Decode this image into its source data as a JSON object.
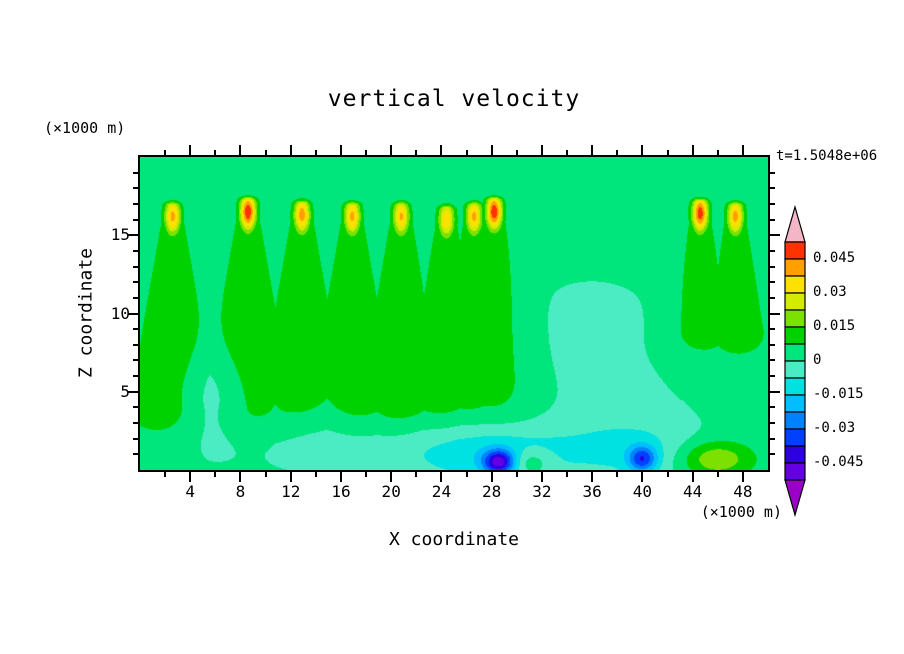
{
  "page": {
    "background": "#ffffff"
  },
  "chart_data": {
    "type": "heatmap",
    "variant": "filled-contour",
    "title": "vertical velocity",
    "xlabel": "X coordinate",
    "ylabel": "Z coordinate",
    "x_unit_label": "(×1000 m)",
    "y_unit_label": "(×1000 m)",
    "time_label": "t=1.5048e+06",
    "xlim": [
      0,
      50
    ],
    "ylim": [
      0,
      20
    ],
    "x_major_ticks": [
      4,
      8,
      12,
      16,
      20,
      24,
      28,
      32,
      36,
      40,
      44,
      48
    ],
    "x_minor_step": 2,
    "y_major_ticks": [
      5,
      10,
      15
    ],
    "y_minor_step": 1,
    "grid": false,
    "legend_position": "right-colorbar",
    "contour_levels": [
      -0.0525,
      -0.045,
      -0.0375,
      -0.03,
      -0.0225,
      -0.015,
      -0.0075,
      0,
      0.0075,
      0.015,
      0.0225,
      0.03,
      0.0375,
      0.045,
      0.0525
    ],
    "colorbar": {
      "labels_top_to_bottom": [
        "0.045",
        "0.03",
        "0.015",
        "0",
        "-0.015",
        "-0.03",
        "-0.045"
      ],
      "band_colors_low_to_high": [
        "#6400E1",
        "#2D00E1",
        "#0041FF",
        "#0082FF",
        "#00BEFF",
        "#00E1E1",
        "#4BEBC3",
        "#00E67D",
        "#00D200",
        "#7DE100",
        "#D2EB00",
        "#FFE100",
        "#FFA000",
        "#FF3200"
      ],
      "below_color": "#9B00C8",
      "above_color": "#F2B6C6"
    },
    "field": {
      "background_value": 0.003,
      "plume_defaults": {
        "tip_width": 0.45,
        "body_amp": 0.0095,
        "body_width": 0.55,
        "body_spread": 0.18,
        "base": 4
      },
      "plumes": [
        {
          "x": 2.6,
          "tip": 16.9,
          "peak": 0.04
        },
        {
          "x": 8.6,
          "tip": 17.2,
          "peak": 0.051
        },
        {
          "x": 12.9,
          "tip": 17.0,
          "peak": 0.042
        },
        {
          "x": 16.9,
          "tip": 16.9,
          "peak": 0.04
        },
        {
          "x": 20.8,
          "tip": 16.9,
          "peak": 0.039
        },
        {
          "x": 24.4,
          "tip": 16.7,
          "peak": 0.037
        },
        {
          "x": 26.6,
          "tip": 16.9,
          "peak": 0.04
        },
        {
          "x": 28.2,
          "tip": 17.2,
          "peak": 0.051
        },
        {
          "x": 44.6,
          "tip": 17.1,
          "peak": 0.05,
          "base": 9
        },
        {
          "x": 47.4,
          "tip": 16.9,
          "peak": 0.041,
          "base": 9
        }
      ],
      "spots": [
        {
          "x": 28.6,
          "z": 0.5,
          "sx": 0.9,
          "sz": 0.55,
          "amp": -0.04
        },
        {
          "x": 28.0,
          "z": 1.2,
          "sx": 4.5,
          "sz": 1.6,
          "amp": -0.011
        },
        {
          "x": 40.0,
          "z": 0.7,
          "sx": 0.8,
          "sz": 0.6,
          "amp": -0.03
        },
        {
          "x": 39.5,
          "z": 1.3,
          "sx": 3.5,
          "sz": 1.5,
          "amp": -0.009
        },
        {
          "x": 22.0,
          "z": 1.2,
          "sx": 10.0,
          "sz": 1.5,
          "amp": -0.006
        },
        {
          "x": 36.0,
          "z": 7.0,
          "sx": 6.5,
          "sz": 5.0,
          "amp": -0.005
        },
        {
          "x": 5.8,
          "z": 4.5,
          "sx": 2.0,
          "sz": 2.2,
          "amp": -0.01
        },
        {
          "x": 14.0,
          "z": 2.8,
          "sx": 3.0,
          "sz": 1.5,
          "amp": -0.005
        },
        {
          "x": 45.8,
          "z": 0.7,
          "sx": 2.0,
          "sz": 0.8,
          "amp": 0.02
        },
        {
          "x": 31.0,
          "z": 0.5,
          "sx": 1.2,
          "sz": 0.6,
          "amp": 0.013
        }
      ]
    }
  }
}
